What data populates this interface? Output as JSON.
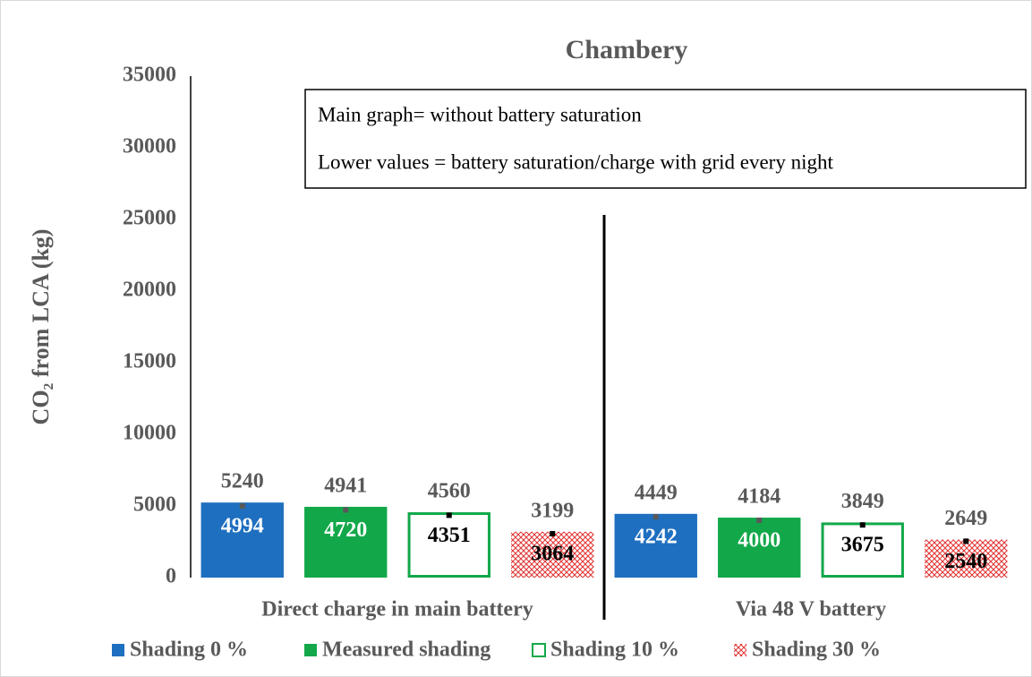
{
  "chart_data": {
    "type": "bar",
    "title": "Chambery",
    "y_label": "CO₂ from LCA (kg)",
    "annotations": [
      "Main graph= without battery saturation",
      "Lower values = battery saturation/charge with grid every night"
    ],
    "categories": [
      "Direct charge in main battery",
      "Via 48 V battery"
    ],
    "series": [
      {
        "name": "Shading 0 %",
        "color": "#1f6fc0",
        "style": "solid",
        "values": [
          5240,
          4449
        ],
        "lower_values": [
          4994,
          4242
        ]
      },
      {
        "name": "Measured shading",
        "color": "#12a84a",
        "style": "solid",
        "values": [
          4941,
          4184
        ],
        "lower_values": [
          4720,
          4000
        ]
      },
      {
        "name": "Shading 10 %",
        "color": "#12a84a",
        "style": "outline",
        "values": [
          4560,
          3849
        ],
        "lower_values": [
          4351,
          3675
        ]
      },
      {
        "name": "Shading 30 %",
        "color": "#e03030",
        "style": "hatch",
        "values": [
          3199,
          2649
        ],
        "lower_values": [
          3064,
          2540
        ]
      }
    ],
    "ylim": [
      0,
      35000
    ],
    "yticks": [
      0,
      5000,
      10000,
      15000,
      20000,
      25000,
      30000,
      35000
    ]
  }
}
